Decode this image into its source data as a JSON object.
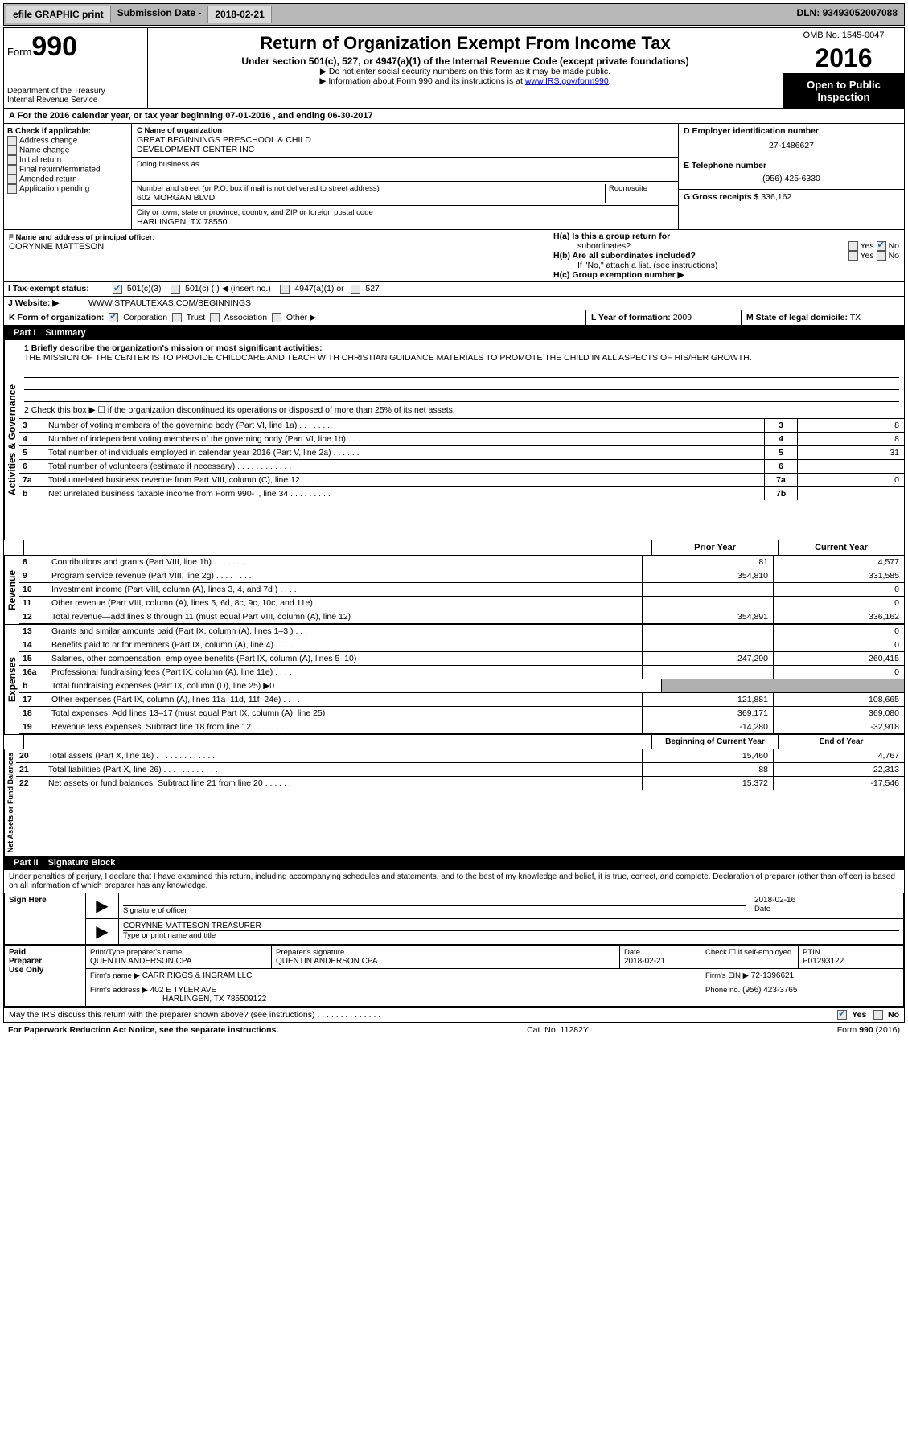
{
  "topbar": {
    "efile": "efile GRAPHIC print",
    "subm_label": "Submission Date -",
    "subm_date": "2018-02-21",
    "dln_label": "DLN:",
    "dln": "93493052007088"
  },
  "header": {
    "form_label": "Form",
    "form_no": "990",
    "dept": "Department of the Treasury",
    "irs": "Internal Revenue Service",
    "title": "Return of Organization Exempt From Income Tax",
    "subtitle": "Under section 501(c), 527, or 4947(a)(1) of the Internal Revenue Code (except private foundations)",
    "note1": "▶ Do not enter social security numbers on this form as it may be made public.",
    "note2_a": "▶ Information about Form 990 and its instructions is at ",
    "note2_link": "www.IRS.gov/form990",
    "note2_b": ".",
    "omb": "OMB No. 1545-0047",
    "year": "2016",
    "inspect1": "Open to Public",
    "inspect2": "Inspection"
  },
  "lineA": "A  For the 2016 calendar year, or tax year beginning 07-01-2016    , and ending 06-30-2017",
  "secB": {
    "hdr": "B Check if applicable:",
    "items": [
      "Address change",
      "Name change",
      "Initial return",
      "Final return/terminated",
      "Amended return",
      "Application pending"
    ]
  },
  "secC": {
    "name_lbl": "C Name of organization",
    "name1": "GREAT BEGINNINGS PRESCHOOL & CHILD",
    "name2": "DEVELOPMENT CENTER INC",
    "dba_lbl": "Doing business as",
    "addr_lbl": "Number and street (or P.O. box if mail is not delivered to street address)",
    "room_lbl": "Room/suite",
    "addr": "602 MORGAN BLVD",
    "city_lbl": "City or town, state or province, country, and ZIP or foreign postal code",
    "city": "HARLINGEN, TX  78550"
  },
  "secD": {
    "lbl": "D Employer identification number",
    "val": "27-1486627"
  },
  "secE": {
    "lbl": "E Telephone number",
    "val": "(956) 425-6330"
  },
  "secG": {
    "lbl": "G Gross receipts $",
    "val": "336,162"
  },
  "secF": {
    "lbl": "F Name and address of principal officer:",
    "val": "CORYNNE MATTESON"
  },
  "secH": {
    "a": "H(a)  Is this a group return for",
    "a2": "subordinates?",
    "b": "H(b)  Are all subordinates included?",
    "b_note": "If \"No,\" attach a list. (see instructions)",
    "c": "H(c)  Group exemption number ▶",
    "yes": "Yes",
    "no": "No"
  },
  "secI": {
    "lbl": "I  Tax-exempt status:",
    "opts": [
      "501(c)(3)",
      "501(c) (   ) ◀ (insert no.)",
      "4947(a)(1) or",
      "527"
    ]
  },
  "secJ": {
    "lbl": "J  Website: ▶",
    "val": "WWW.STPAULTEXAS.COM/BEGINNINGS"
  },
  "secK": {
    "lbl": "K Form of organization:",
    "opts": [
      "Corporation",
      "Trust",
      "Association",
      "Other ▶"
    ]
  },
  "secL": {
    "lbl": "L Year of formation:",
    "val": "2009"
  },
  "secM": {
    "lbl": "M State of legal domicile:",
    "val": "TX"
  },
  "partI": {
    "num": "Part I",
    "title": "Summary"
  },
  "mission": {
    "lbl": "1  Briefly describe the organization's mission or most significant activities:",
    "text": "THE MISSION OF THE CENTER IS TO PROVIDE CHILDCARE AND TEACH WITH CHRISTIAN GUIDANCE MATERIALS TO PROMOTE THE CHILD IN ALL ASPECTS OF HIS/HER GROWTH."
  },
  "line2": "2  Check this box ▶ ☐  if the organization discontinued its operations or disposed of more than 25% of its net assets.",
  "side_labels": {
    "gov": "Activities & Governance",
    "rev": "Revenue",
    "exp": "Expenses",
    "net": "Net Assets or Fund Balances"
  },
  "cols": {
    "prior": "Prior Year",
    "current": "Current Year",
    "begin": "Beginning of Current Year",
    "end": "End of Year"
  },
  "lines_gov": [
    {
      "n": "3",
      "t": "Number of voting members of the governing body (Part VI, line 1a)  .    .    .    .    .    .    .",
      "box": "3",
      "v": "8"
    },
    {
      "n": "4",
      "t": "Number of independent voting members of the governing body (Part VI, line 1b)  .    .    .    .    .",
      "box": "4",
      "v": "8"
    },
    {
      "n": "5",
      "t": "Total number of individuals employed in calendar year 2016 (Part V, line 2a)  .    .    .    .    .    .",
      "box": "5",
      "v": "31"
    },
    {
      "n": "6",
      "t": "Total number of volunteers (estimate if necessary)  .    .    .    .    .    .    .    .    .    .    .    .",
      "box": "6",
      "v": ""
    },
    {
      "n": "7a",
      "t": "Total unrelated business revenue from Part VIII, column (C), line 12  .    .    .    .    .    .    .    .",
      "box": "7a",
      "v": "0"
    },
    {
      "n": "b",
      "t": "Net unrelated business taxable income from Form 990-T, line 34  .    .    .    .    .    .    .    .    .",
      "box": "7b",
      "v": ""
    }
  ],
  "lines_rev": [
    {
      "n": "8",
      "t": "Contributions and grants (Part VIII, line 1h)  .    .    .    .    .    .    .    .",
      "p": "81",
      "c": "4,577"
    },
    {
      "n": "9",
      "t": "Program service revenue (Part VIII, line 2g)  .    .    .    .    .    .    .    .",
      "p": "354,810",
      "c": "331,585"
    },
    {
      "n": "10",
      "t": "Investment income (Part VIII, column (A), lines 3, 4, and 7d )  .    .    .    .",
      "p": "",
      "c": "0"
    },
    {
      "n": "11",
      "t": "Other revenue (Part VIII, column (A), lines 5, 6d, 8c, 9c, 10c, and 11e)",
      "p": "",
      "c": "0"
    },
    {
      "n": "12",
      "t": "Total revenue—add lines 8 through 11 (must equal Part VIII, column (A), line 12)",
      "p": "354,891",
      "c": "336,162"
    }
  ],
  "lines_exp": [
    {
      "n": "13",
      "t": "Grants and similar amounts paid (Part IX, column (A), lines 1–3 )  .    .    .",
      "p": "",
      "c": "0"
    },
    {
      "n": "14",
      "t": "Benefits paid to or for members (Part IX, column (A), line 4)  .    .    .    .",
      "p": "",
      "c": "0"
    },
    {
      "n": "15",
      "t": "Salaries, other compensation, employee benefits (Part IX, column (A), lines 5–10)",
      "p": "247,290",
      "c": "260,415"
    },
    {
      "n": "16a",
      "t": "Professional fundraising fees (Part IX, column (A), line 11e)  .    .    .    .",
      "p": "",
      "c": "0"
    },
    {
      "n": "b",
      "t": "Total fundraising expenses (Part IX, column (D), line 25) ▶0",
      "p": "shade",
      "c": "shade"
    },
    {
      "n": "17",
      "t": "Other expenses (Part IX, column (A), lines 11a–11d, 11f–24e)  .    .    .    .",
      "p": "121,881",
      "c": "108,665"
    },
    {
      "n": "18",
      "t": "Total expenses. Add lines 13–17 (must equal Part IX, column (A), line 25)",
      "p": "369,171",
      "c": "369,080"
    },
    {
      "n": "19",
      "t": "Revenue less expenses. Subtract line 18 from line 12  .    .    .    .    .    .    .",
      "p": "-14,280",
      "c": "-32,918"
    }
  ],
  "lines_net": [
    {
      "n": "20",
      "t": "Total assets (Part X, line 16)  .    .    .    .    .    .    .    .    .    .    .    .    .",
      "p": "15,460",
      "c": "4,767"
    },
    {
      "n": "21",
      "t": "Total liabilities (Part X, line 26)  .    .    .    .    .    .    .    .    .    .    .    .",
      "p": "88",
      "c": "22,313"
    },
    {
      "n": "22",
      "t": "Net assets or fund balances. Subtract line 21 from line 20  .    .    .    .    .    .",
      "p": "15,372",
      "c": "-17,546"
    }
  ],
  "partII": {
    "num": "Part II",
    "title": "Signature Block"
  },
  "perjury": "Under penalties of perjury, I declare that I have examined this return, including accompanying schedules and statements, and to the best of my knowledge and belief, it is true, correct, and complete. Declaration of preparer (other than officer) is based on all information of which preparer has any knowledge.",
  "sign": {
    "here": "Sign Here",
    "sig_lbl": "Signature of officer",
    "date_lbl": "Date",
    "date": "2018-02-16",
    "name": "CORYNNE MATTESON TREASURER",
    "name_lbl": "Type or print name and title"
  },
  "paid": {
    "lbl1": "Paid",
    "lbl2": "Preparer",
    "lbl3": "Use Only",
    "pname_lbl": "Print/Type preparer's name",
    "pname": "QUENTIN ANDERSON CPA",
    "psig_lbl": "Preparer's signature",
    "psig": "QUENTIN ANDERSON CPA",
    "pdate_lbl": "Date",
    "pdate": "2018-02-21",
    "check_lbl": "Check ☐ if self-employed",
    "ptin_lbl": "PTIN",
    "ptin": "P01293122",
    "firm_lbl": "Firm's name    ▶",
    "firm": "CARR RIGGS & INGRAM LLC",
    "ein_lbl": "Firm's EIN ▶",
    "ein": "72-1396621",
    "addr_lbl": "Firm's address ▶",
    "addr": "402 E TYLER AVE",
    "city": "HARLINGEN, TX  785509122",
    "phone_lbl": "Phone no.",
    "phone": "(956) 423-3765"
  },
  "discuss": {
    "q": "May the IRS discuss this return with the preparer shown above? (see instructions)  .    .    .    .    .    .    .    .    .    .    .    .    .    .",
    "yes": "Yes",
    "no": "No"
  },
  "footer": {
    "left": "For Paperwork Reduction Act Notice, see the separate instructions.",
    "mid": "Cat. No. 11282Y",
    "right": "Form 990 (2016)"
  },
  "colors": {
    "topbar_bg": "#b8b8b8",
    "link": "#0000cc",
    "black": "#000000"
  }
}
